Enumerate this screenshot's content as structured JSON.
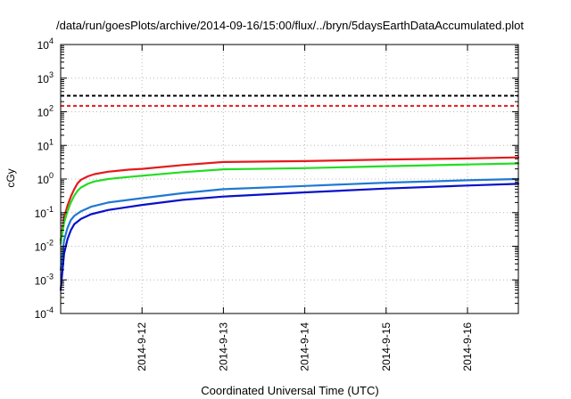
{
  "chart_data": {
    "type": "line",
    "title": "/data/run/goesPlots/archive/2014-09-16/15:00/flux/../bryn/5daysEarthDataAccumulated.plot",
    "xlabel": "Coordinated Universal Time (UTC)",
    "ylabel": "cGy",
    "x_axis_type": "date",
    "xlim": [
      "2014-09-11T00:00",
      "2014-09-16T15:00"
    ],
    "x_ticks": [
      "2014-9-12",
      "2014-9-13",
      "2014-9-14",
      "2014-9-15",
      "2014-9-16"
    ],
    "y_scale": "log",
    "ylim": [
      0.0001,
      10000
    ],
    "y_ticks": [
      {
        "base": "10",
        "exp": "-4"
      },
      {
        "base": "10",
        "exp": "-3"
      },
      {
        "base": "10",
        "exp": "-2"
      },
      {
        "base": "10",
        "exp": "-1"
      },
      {
        "base": "10",
        "exp": "0"
      },
      {
        "base": "10",
        "exp": "1"
      },
      {
        "base": "10",
        "exp": "2"
      },
      {
        "base": "10",
        "exp": "3"
      },
      {
        "base": "10",
        "exp": "4"
      }
    ],
    "grid": true,
    "legend": "none",
    "series": [
      {
        "color": "#e41a1c",
        "style": "solid",
        "points": [
          [
            "2014-09-11T00:00",
            0.015
          ],
          [
            "2014-09-11T01:00",
            0.07
          ],
          [
            "2014-09-11T02:00",
            0.16
          ],
          [
            "2014-09-11T03:00",
            0.3
          ],
          [
            "2014-09-11T04:00",
            0.5
          ],
          [
            "2014-09-11T05:00",
            0.75
          ],
          [
            "2014-09-11T06:00",
            0.95
          ],
          [
            "2014-09-11T08:00",
            1.2
          ],
          [
            "2014-09-11T10:00",
            1.4
          ],
          [
            "2014-09-11T14:00",
            1.65
          ],
          [
            "2014-09-11T20:00",
            1.9
          ],
          [
            "2014-09-12T00:00",
            2.0
          ],
          [
            "2014-09-12T12:00",
            2.6
          ],
          [
            "2014-09-13T00:00",
            3.2
          ],
          [
            "2014-09-13T12:00",
            3.3
          ],
          [
            "2014-09-14T00:00",
            3.4
          ],
          [
            "2014-09-15T00:00",
            3.8
          ],
          [
            "2014-09-16T00:00",
            4.1
          ],
          [
            "2014-09-16T15:00",
            4.4
          ]
        ]
      },
      {
        "color": "#22dd22",
        "style": "solid",
        "points": [
          [
            "2014-09-11T00:00",
            0.012
          ],
          [
            "2014-09-11T01:00",
            0.05
          ],
          [
            "2014-09-11T02:00",
            0.11
          ],
          [
            "2014-09-11T03:00",
            0.2
          ],
          [
            "2014-09-11T04:00",
            0.32
          ],
          [
            "2014-09-11T05:00",
            0.45
          ],
          [
            "2014-09-11T06:00",
            0.56
          ],
          [
            "2014-09-11T08:00",
            0.72
          ],
          [
            "2014-09-11T10:00",
            0.85
          ],
          [
            "2014-09-11T14:00",
            1.0
          ],
          [
            "2014-09-11T20:00",
            1.15
          ],
          [
            "2014-09-12T00:00",
            1.25
          ],
          [
            "2014-09-12T12:00",
            1.6
          ],
          [
            "2014-09-13T00:00",
            1.95
          ],
          [
            "2014-09-14T00:00",
            2.1
          ],
          [
            "2014-09-15T00:00",
            2.4
          ],
          [
            "2014-09-16T00:00",
            2.7
          ],
          [
            "2014-09-16T15:00",
            2.9
          ]
        ]
      },
      {
        "color": "#1f78d4",
        "style": "solid",
        "points": [
          [
            "2014-09-11T00:00",
            0.002
          ],
          [
            "2014-09-11T01:00",
            0.015
          ],
          [
            "2014-09-11T02:00",
            0.035
          ],
          [
            "2014-09-11T03:00",
            0.06
          ],
          [
            "2014-09-11T04:00",
            0.08
          ],
          [
            "2014-09-11T06:00",
            0.11
          ],
          [
            "2014-09-11T09:00",
            0.15
          ],
          [
            "2014-09-11T14:00",
            0.2
          ],
          [
            "2014-09-12T00:00",
            0.27
          ],
          [
            "2014-09-12T12:00",
            0.38
          ],
          [
            "2014-09-13T00:00",
            0.5
          ],
          [
            "2014-09-14T00:00",
            0.62
          ],
          [
            "2014-09-15T00:00",
            0.78
          ],
          [
            "2014-09-16T00:00",
            0.92
          ],
          [
            "2014-09-16T15:00",
            1.0
          ]
        ]
      },
      {
        "color": "#0a10c8",
        "style": "solid",
        "points": [
          [
            "2014-09-11T00:00",
            0.0005
          ],
          [
            "2014-09-11T01:00",
            0.006
          ],
          [
            "2014-09-11T02:00",
            0.016
          ],
          [
            "2014-09-11T03:00",
            0.03
          ],
          [
            "2014-09-11T04:00",
            0.045
          ],
          [
            "2014-09-11T06:00",
            0.065
          ],
          [
            "2014-09-11T09:00",
            0.09
          ],
          [
            "2014-09-11T14:00",
            0.12
          ],
          [
            "2014-09-12T00:00",
            0.17
          ],
          [
            "2014-09-12T12:00",
            0.24
          ],
          [
            "2014-09-13T00:00",
            0.3
          ],
          [
            "2014-09-14T00:00",
            0.4
          ],
          [
            "2014-09-15T00:00",
            0.52
          ],
          [
            "2014-09-16T00:00",
            0.64
          ],
          [
            "2014-09-16T15:00",
            0.72
          ]
        ]
      }
    ],
    "reference_lines": [
      {
        "value": 300,
        "color": "#000000",
        "style": "dashed"
      },
      {
        "value": 150,
        "color": "#e41a1c",
        "style": "dashed"
      }
    ]
  }
}
